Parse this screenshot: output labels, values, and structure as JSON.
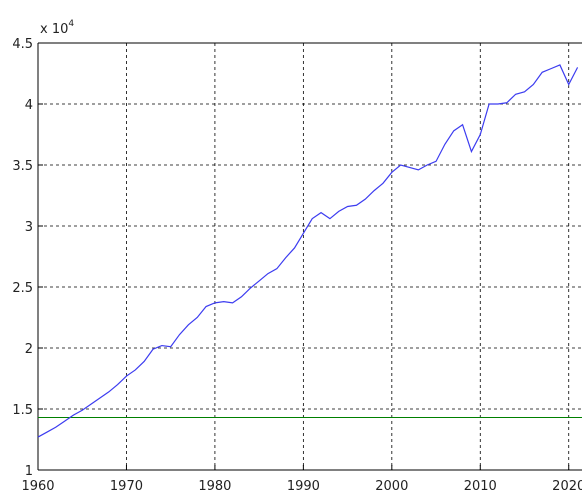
{
  "chart_data": {
    "type": "line",
    "y_multiplier": {
      "base": "x 10",
      "exponent": 4
    },
    "x": [
      1960,
      1961,
      1962,
      1963,
      1964,
      1965,
      1966,
      1967,
      1968,
      1969,
      1970,
      1971,
      1972,
      1973,
      1974,
      1975,
      1976,
      1977,
      1978,
      1979,
      1980,
      1981,
      1982,
      1983,
      1984,
      1985,
      1986,
      1987,
      1988,
      1989,
      1990,
      1991,
      1992,
      1993,
      1994,
      1995,
      1996,
      1997,
      1998,
      1999,
      2000,
      2001,
      2002,
      2003,
      2004,
      2005,
      2006,
      2007,
      2008,
      2009,
      2010,
      2011,
      2012,
      2013,
      2014,
      2015,
      2016,
      2017,
      2018,
      2019,
      2020,
      2021
    ],
    "series": [
      {
        "color": "#3c3cf0",
        "values": [
          1.27,
          1.31,
          1.35,
          1.4,
          1.45,
          1.49,
          1.54,
          1.59,
          1.64,
          1.7,
          1.77,
          1.82,
          1.89,
          1.99,
          2.02,
          2.01,
          2.11,
          2.19,
          2.25,
          2.34,
          2.37,
          2.38,
          2.37,
          2.42,
          2.49,
          2.55,
          2.61,
          2.65,
          2.74,
          2.82,
          2.94,
          3.06,
          3.11,
          3.06,
          3.12,
          3.16,
          3.17,
          3.22,
          3.29,
          3.35,
          3.44,
          3.5,
          3.48,
          3.46,
          3.5,
          3.53,
          3.67,
          3.78,
          3.83,
          3.61,
          3.75,
          4.0,
          4.0,
          4.01,
          4.08,
          4.1,
          4.16,
          4.26,
          4.29,
          4.32,
          4.16,
          4.3
        ]
      }
    ],
    "hlines": [
      {
        "value": 1.43,
        "color": "#008000"
      }
    ],
    "xlim": [
      1960,
      2021.5
    ],
    "ylim": [
      1,
      4.5
    ],
    "xticks": [
      1960,
      1970,
      1980,
      1990,
      2000,
      2010,
      2020
    ],
    "yticks": [
      1,
      1.5,
      2,
      2.5,
      3,
      3.5,
      4,
      4.5
    ],
    "grid": true
  }
}
